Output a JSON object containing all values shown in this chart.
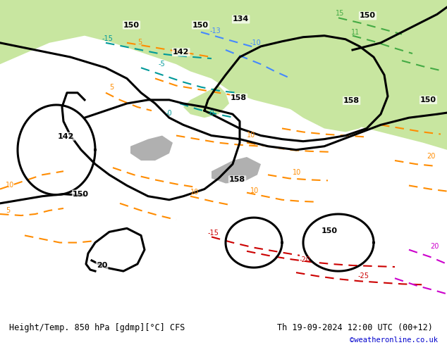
{
  "title_left": "Height/Temp. 850 hPa [gdmp][°C] CFS",
  "title_right": "Th 19-09-2024 12:00 UTC (00+12)",
  "credit": "©weatheronline.co.uk",
  "bg_land_color": "#c8e6a0",
  "bg_sea_color": "#e8e8e8",
  "bg_mountain_color": "#b0b0b0",
  "footer_bg": "#f0f0f0",
  "footer_text_color": "#000000",
  "credit_color": "#0000cc",
  "contour_black_color": "#000000",
  "contour_orange_color": "#ff8c00",
  "contour_red_color": "#cc0000",
  "contour_magenta_color": "#cc00cc",
  "contour_teal_color": "#009999",
  "contour_blue_color": "#4488ff",
  "contour_green_color": "#44aa44",
  "figwidth": 6.34,
  "figheight": 4.9,
  "dpi": 100
}
